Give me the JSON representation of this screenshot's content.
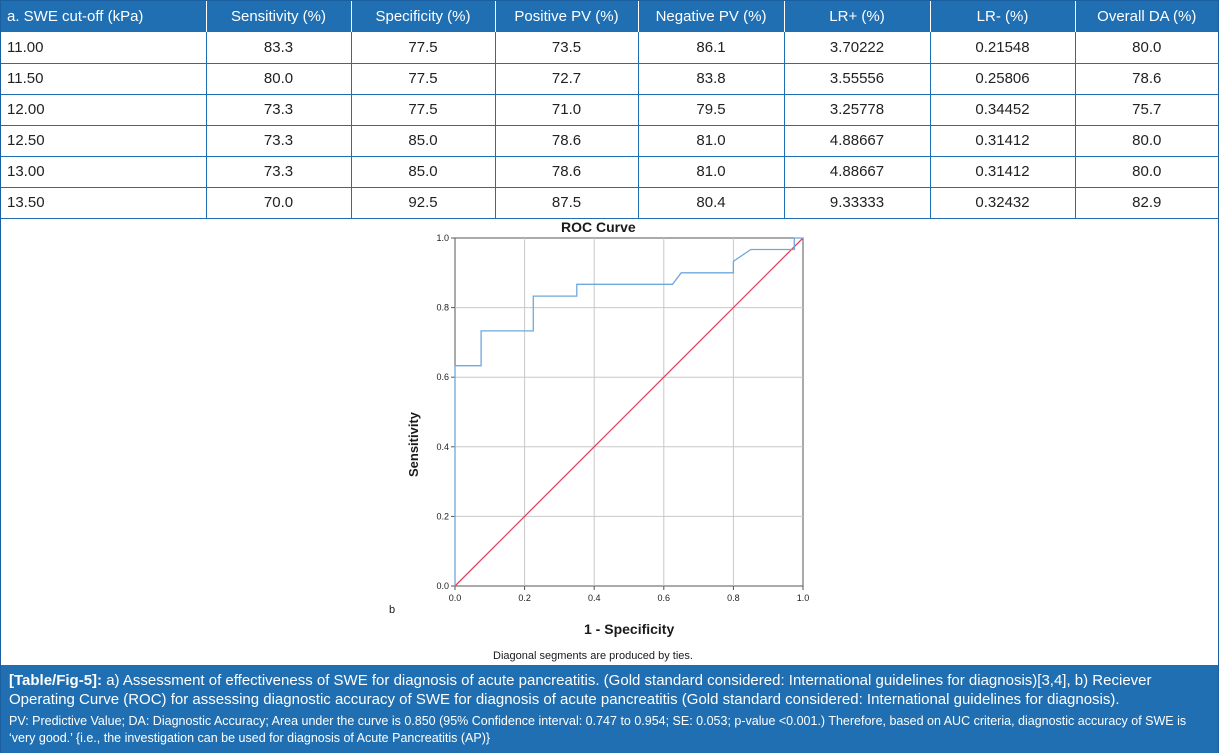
{
  "table": {
    "headers": [
      "a. SWE cut-off (kPa)",
      "Sensitivity (%)",
      "Specificity (%)",
      "Positive PV (%)",
      "Negative PV (%)",
      "LR+ (%)",
      "LR- (%)",
      "Overall DA (%)"
    ],
    "rows": [
      [
        "11.00",
        "83.3",
        "77.5",
        "73.5",
        "86.1",
        "3.70222",
        "0.21548",
        "80.0"
      ],
      [
        "11.50",
        "80.0",
        "77.5",
        "72.7",
        "83.8",
        "3.55556",
        "0.25806",
        "78.6"
      ],
      [
        "12.00",
        "73.3",
        "77.5",
        "71.0",
        "79.5",
        "3.25778",
        "0.34452",
        "75.7"
      ],
      [
        "12.50",
        "73.3",
        "85.0",
        "78.6",
        "81.0",
        "4.88667",
        "0.31412",
        "80.0"
      ],
      [
        "13.00",
        "73.3",
        "85.0",
        "78.6",
        "81.0",
        "4.88667",
        "0.31412",
        "80.0"
      ],
      [
        "13.50",
        "70.0",
        "92.5",
        "87.5",
        "80.4",
        "9.33333",
        "0.32432",
        "82.9"
      ]
    ]
  },
  "panel_letter": "b",
  "chart_footnote": "Diagonal segments are produced by ties.",
  "chart_data": {
    "type": "line",
    "title": "ROC Curve",
    "xlabel": "1 - Specificity",
    "ylabel": "Sensitivity",
    "xlim": [
      0.0,
      1.0
    ],
    "ylim": [
      0.0,
      1.0
    ],
    "xticks": [
      "0.0",
      "0.2",
      "0.4",
      "0.6",
      "0.8",
      "1.0"
    ],
    "yticks": [
      "0.0",
      "0.2",
      "0.4",
      "0.6",
      "0.8",
      "1.0"
    ],
    "grid": true,
    "series": [
      {
        "color": "#6fa8dc",
        "x": [
          0.0,
          0.0,
          0.075,
          0.075,
          0.225,
          0.225,
          0.35,
          0.35,
          0.625,
          0.65,
          0.8,
          0.8,
          0.85,
          0.975,
          0.975,
          1.0
        ],
        "y": [
          0.0,
          0.633,
          0.633,
          0.733,
          0.733,
          0.833,
          0.833,
          0.867,
          0.867,
          0.9,
          0.9,
          0.933,
          0.967,
          0.967,
          1.0,
          1.0
        ]
      },
      {
        "color": "#e8425a",
        "x": [
          0.0,
          1.0
        ],
        "y": [
          0.0,
          1.0
        ]
      }
    ]
  },
  "caption": {
    "label": "[Table/Fig-5]:",
    "text": "a) Assessment of effectiveness of SWE for diagnosis of acute pancreatitis. (Gold standard considered: International guidelines for diagnosis)[3,4], b) Reciever Operating Curve (ROC) for assessing diagnostic accuracy of SWE for diagnosis of acute pancreatitis (Gold standard considered: International guidelines for diagnosis).",
    "note": "PV: Predictive Value; DA: Diagnostic Accuracy; Area under the curve is 0.850 (95% Confidence interval: 0.747 to 0.954; SE: 0.053; p-value <0.001.) Therefore, based on AUC criteria, diagnostic accuracy of SWE is ‘very good.’ {i.e., the investigation can be used for diagnosis of Acute Pancreatitis (AP)}"
  }
}
